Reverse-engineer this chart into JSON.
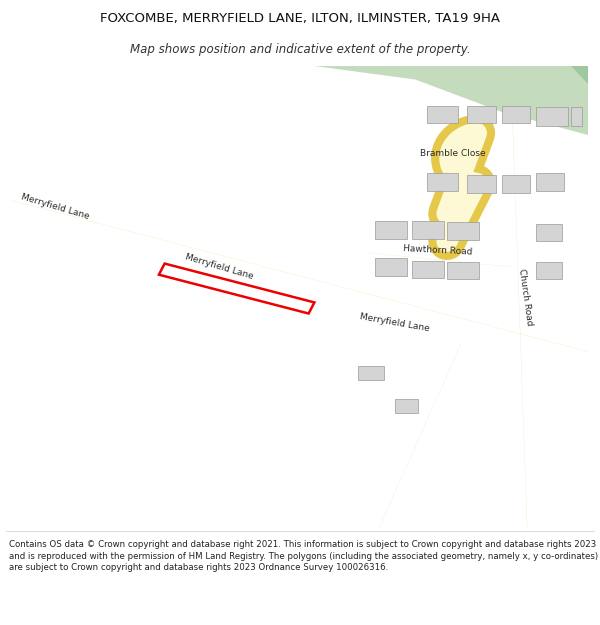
{
  "title": "FOXCOMBE, MERRYFIELD LANE, ILTON, ILMINSTER, TA19 9HA",
  "subtitle": "Map shows position and indicative extent of the property.",
  "footer": "Contains OS data © Crown copyright and database right 2021. This information is subject to Crown copyright and database rights 2023 and is reproduced with the permission of HM Land Registry. The polygons (including the associated geometry, namely x, y co-ordinates) are subject to Crown copyright and database rights 2023 Ordnance Survey 100026316.",
  "road_fill": "#fef9d5",
  "road_border": "#e5c84a",
  "building_color": "#d4d4d4",
  "building_border": "#999999",
  "green_color": "#c5dbbe",
  "map_bg": "#f8f8f8",
  "plot_color": "#ee0000"
}
